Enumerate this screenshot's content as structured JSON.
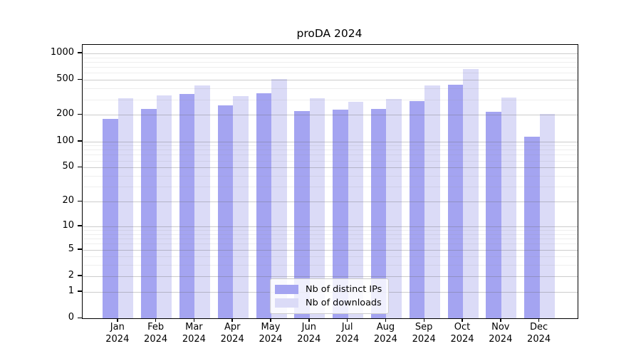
{
  "chart_data": {
    "type": "bar",
    "title": "proDA 2024",
    "categories": [
      "Jan",
      "Feb",
      "Mar",
      "Apr",
      "May",
      "Jun",
      "Jul",
      "Aug",
      "Sep",
      "Oct",
      "Nov",
      "Dec"
    ],
    "x_tick_year_line": "2024",
    "series": [
      {
        "name": "Nb of distinct IPs",
        "color": "#a4a4f1",
        "values": [
          180,
          235,
          345,
          258,
          352,
          223,
          230,
          236,
          287,
          440,
          218,
          114
        ]
      },
      {
        "name": "Nb of downloads",
        "color": "#dbdbf7",
        "values": [
          310,
          333,
          430,
          325,
          508,
          311,
          280,
          303,
          430,
          670,
          314,
          206
        ]
      }
    ],
    "y_scale": "log1p",
    "ylim": [
      0,
      1250
    ],
    "y_ticks": [
      0,
      1,
      2,
      5,
      10,
      20,
      50,
      100,
      200,
      500,
      1000
    ],
    "y_minor_gridlines": [
      3,
      4,
      6,
      7,
      8,
      9,
      30,
      40,
      60,
      70,
      80,
      90,
      300,
      400,
      600,
      700,
      800,
      900
    ],
    "grid": true,
    "legend_position": "lower center",
    "xlabel": "",
    "ylabel": ""
  },
  "colors": {
    "background": "#ffffff",
    "spine": "#000000",
    "major_grid": "#b9b9b9",
    "minor_grid": "#e8e8e8",
    "legend_border": "#cccccc",
    "text": "#000000"
  }
}
